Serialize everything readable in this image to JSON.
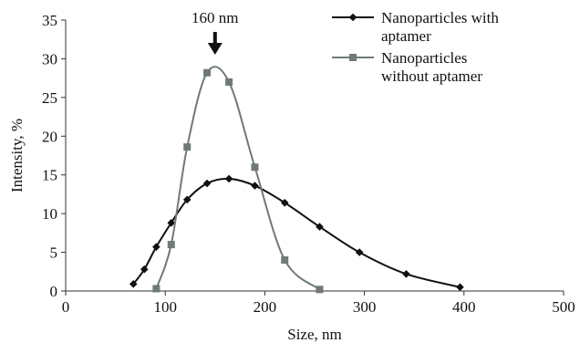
{
  "chart_data": {
    "type": "line",
    "title": "",
    "xlabel": "Size, nm",
    "ylabel": "Intensity, %",
    "xlim": [
      0,
      500
    ],
    "ylim": [
      0,
      35
    ],
    "xticks": [
      0,
      100,
      200,
      300,
      400,
      500
    ],
    "yticks": [
      0,
      5,
      10,
      15,
      20,
      25,
      30,
      35
    ],
    "grid": false,
    "legend_position": "top-right",
    "annotation": {
      "text": "160 nm",
      "x": 150,
      "arrow": "down"
    },
    "series": [
      {
        "name": "Nanoparticles with aptamer",
        "color": "#111111",
        "marker": "diamond",
        "x": [
          68,
          79,
          91,
          106,
          122,
          142,
          164,
          190,
          220,
          255,
          295,
          342,
          396
        ],
        "y": [
          0.9,
          2.8,
          5.7,
          8.8,
          11.8,
          13.9,
          14.5,
          13.6,
          11.4,
          8.3,
          5.0,
          2.2,
          0.5
        ]
      },
      {
        "name": "Nanoparticles without aptamer",
        "color": "#6f7a75",
        "marker": "square",
        "x": [
          91,
          106,
          122,
          142,
          164,
          190,
          220,
          255
        ],
        "y": [
          0.3,
          6.0,
          18.6,
          28.2,
          27.0,
          16.0,
          4.0,
          0.2
        ]
      }
    ]
  }
}
